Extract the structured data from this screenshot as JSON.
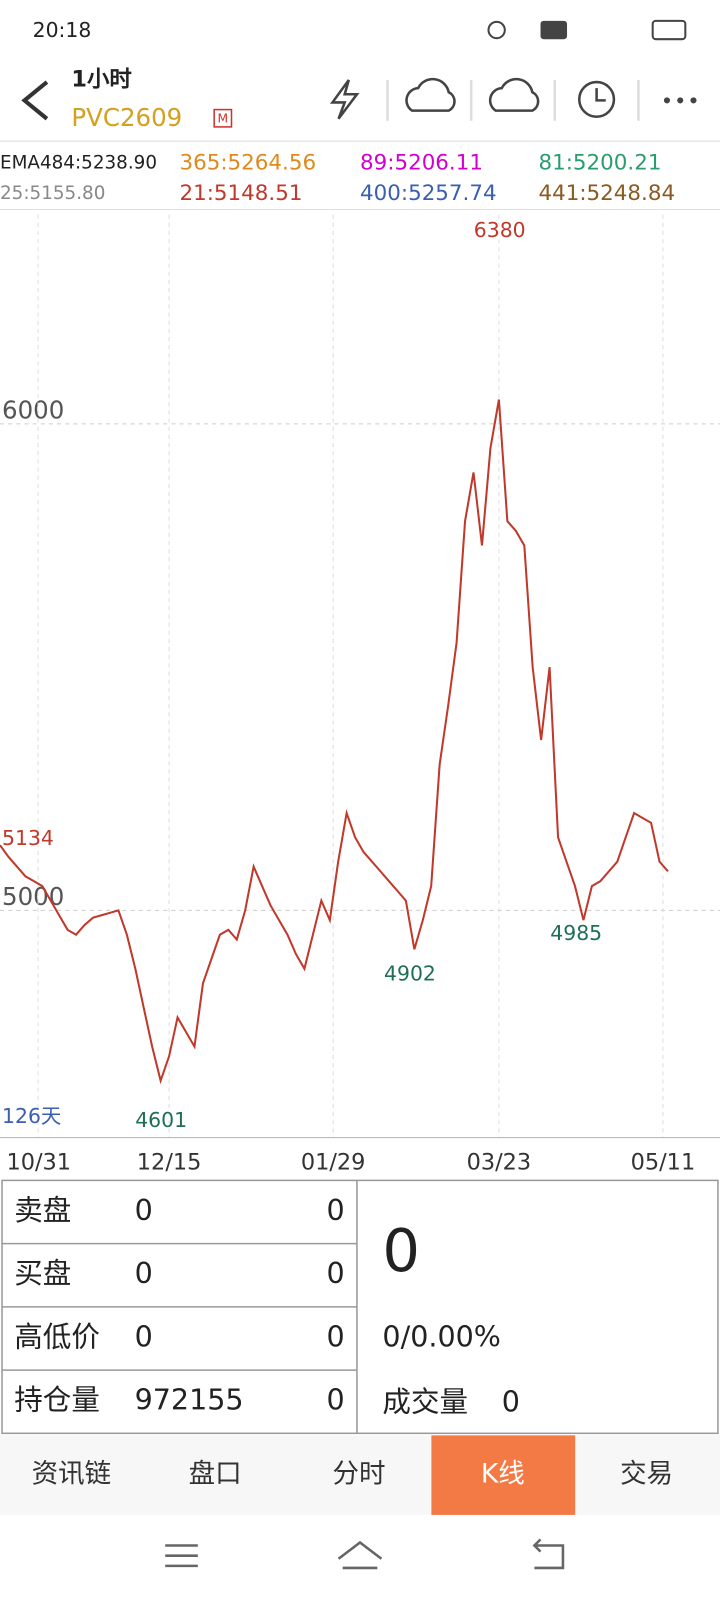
{
  "status_bar": {
    "time": "20:18"
  },
  "header": {
    "period": "1小时",
    "symbol": "PVC2609",
    "badge": "M"
  },
  "indicators": [
    {
      "text": "EMA484:5238.90",
      "color": "#222222"
    },
    {
      "text": "365:5264.56",
      "color": "#e08a1e"
    },
    {
      "text": "89:5206.11",
      "color": "#d000d0"
    },
    {
      "text": "81:5200.21",
      "color": "#2a9d6f"
    },
    {
      "text": "25:5155.80",
      "color": "#888888"
    },
    {
      "text": "21:5148.51",
      "color": "#c0392b"
    },
    {
      "text": "400:5257.74",
      "color": "#3a5fb0"
    },
    {
      "text": "441:5248.84",
      "color": "#8a5a20"
    }
  ],
  "chart_data": {
    "type": "line",
    "series": [
      {
        "color": "#c0392b",
        "values": [
          5134,
          5110,
          5090,
          5070,
          5060,
          5050,
          5020,
          4990,
          4960,
          4950,
          4970,
          4985,
          4990,
          4995,
          5000,
          4950,
          4880,
          4800,
          4720,
          4650,
          4700,
          4780,
          4750,
          4720,
          4850,
          4900,
          4950,
          4960,
          4940,
          5000,
          5090,
          5050,
          5010,
          4980,
          4950,
          4910,
          4880,
          4950,
          5020,
          4980,
          5100,
          5200,
          5150,
          5120,
          5100,
          5080,
          5060,
          5040,
          5020,
          4920,
          4980,
          5050,
          5300,
          5420,
          5550,
          5800,
          5900,
          5750,
          5950,
          6050,
          5800,
          5780,
          5750,
          5500,
          5350,
          5500,
          5150,
          5100,
          5050,
          4980,
          5050,
          5060,
          5080,
          5100,
          5150,
          5200,
          5190,
          5180,
          5100,
          5080
        ]
      }
    ],
    "xlim": [
      0,
      79
    ],
    "ylim": [
      4533,
      6430
    ],
    "yticks": [
      5000,
      6000
    ],
    "xticks": [
      {
        "value": 4.5,
        "label": "10/31"
      },
      {
        "value": 20,
        "label": "12/15"
      },
      {
        "value": 39.4,
        "label": "01/29"
      },
      {
        "value": 59,
        "label": "03/23"
      },
      {
        "value": 78.4,
        "label": "05/11"
      }
    ],
    "annotations": [
      6380,
      4601,
      4902,
      4985,
      5134
    ],
    "period_note": "126天",
    "grid": true
  },
  "quote_table": {
    "rows": [
      [
        "卖盘",
        0,
        0
      ],
      [
        "买盘",
        0,
        0
      ],
      [
        "高低价",
        0,
        0
      ],
      [
        "持仓量",
        972155,
        0
      ]
    ]
  },
  "quote_summary": {
    "price": 0,
    "change": "0/0.00%",
    "volume_label": "成交量",
    "volume": 0
  },
  "tabs": [
    "资讯链",
    "盘口",
    "分时",
    "K线",
    "交易"
  ]
}
